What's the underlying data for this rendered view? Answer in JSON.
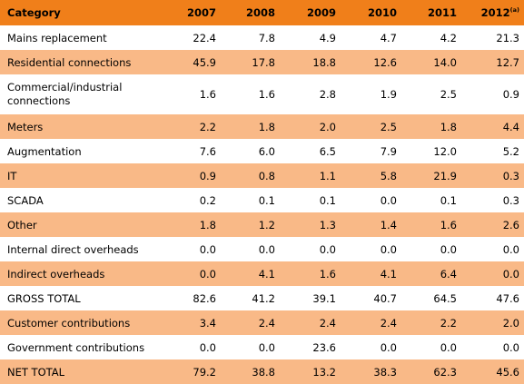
{
  "table": {
    "header": {
      "category": "Category",
      "years": [
        "2007",
        "2008",
        "2009",
        "2010",
        "2011",
        "2012"
      ],
      "last_year_note": "(a)"
    },
    "rows": [
      {
        "category": "Mains replacement",
        "values": [
          "22.4",
          "7.8",
          "4.9",
          "4.7",
          "4.2",
          "21.3"
        ]
      },
      {
        "category": "Residential connections",
        "values": [
          "45.9",
          "17.8",
          "18.8",
          "12.6",
          "14.0",
          "12.7"
        ]
      },
      {
        "category": "Commercial/industrial connections",
        "values": [
          "1.6",
          "1.6",
          "2.8",
          "1.9",
          "2.5",
          "0.9"
        ]
      },
      {
        "category": "Meters",
        "values": [
          "2.2",
          "1.8",
          "2.0",
          "2.5",
          "1.8",
          "4.4"
        ]
      },
      {
        "category": "Augmentation",
        "values": [
          "7.6",
          "6.0",
          "6.5",
          "7.9",
          "12.0",
          "5.2"
        ]
      },
      {
        "category": "IT",
        "values": [
          "0.9",
          "0.8",
          "1.1",
          "5.8",
          "21.9",
          "0.3"
        ]
      },
      {
        "category": "SCADA",
        "values": [
          "0.2",
          "0.1",
          "0.1",
          "0.0",
          "0.1",
          "0.3"
        ]
      },
      {
        "category": "Other",
        "values": [
          "1.8",
          "1.2",
          "1.3",
          "1.4",
          "1.6",
          "2.6"
        ]
      },
      {
        "category": "Internal direct overheads",
        "values": [
          "0.0",
          "0.0",
          "0.0",
          "0.0",
          "0.0",
          "0.0"
        ]
      },
      {
        "category": "Indirect overheads",
        "values": [
          "0.0",
          "4.1",
          "1.6",
          "4.1",
          "6.4",
          "0.0"
        ]
      },
      {
        "category": "GROSS TOTAL",
        "values": [
          "82.6",
          "41.2",
          "39.1",
          "40.7",
          "64.5",
          "47.6"
        ]
      },
      {
        "category": "Customer contributions",
        "values": [
          "3.4",
          "2.4",
          "2.4",
          "2.4",
          "2.2",
          "2.0"
        ]
      },
      {
        "category": "Government contributions",
        "values": [
          "0.0",
          "0.0",
          "23.6",
          "0.0",
          "0.0",
          "0.0"
        ]
      },
      {
        "category": "NET TOTAL",
        "values": [
          "79.2",
          "38.8",
          "13.2",
          "38.3",
          "62.3",
          "45.6"
        ]
      }
    ]
  },
  "colors": {
    "header": "#f07f1a",
    "shaded_row": "#f9b987",
    "plain_row": "#ffffff"
  }
}
